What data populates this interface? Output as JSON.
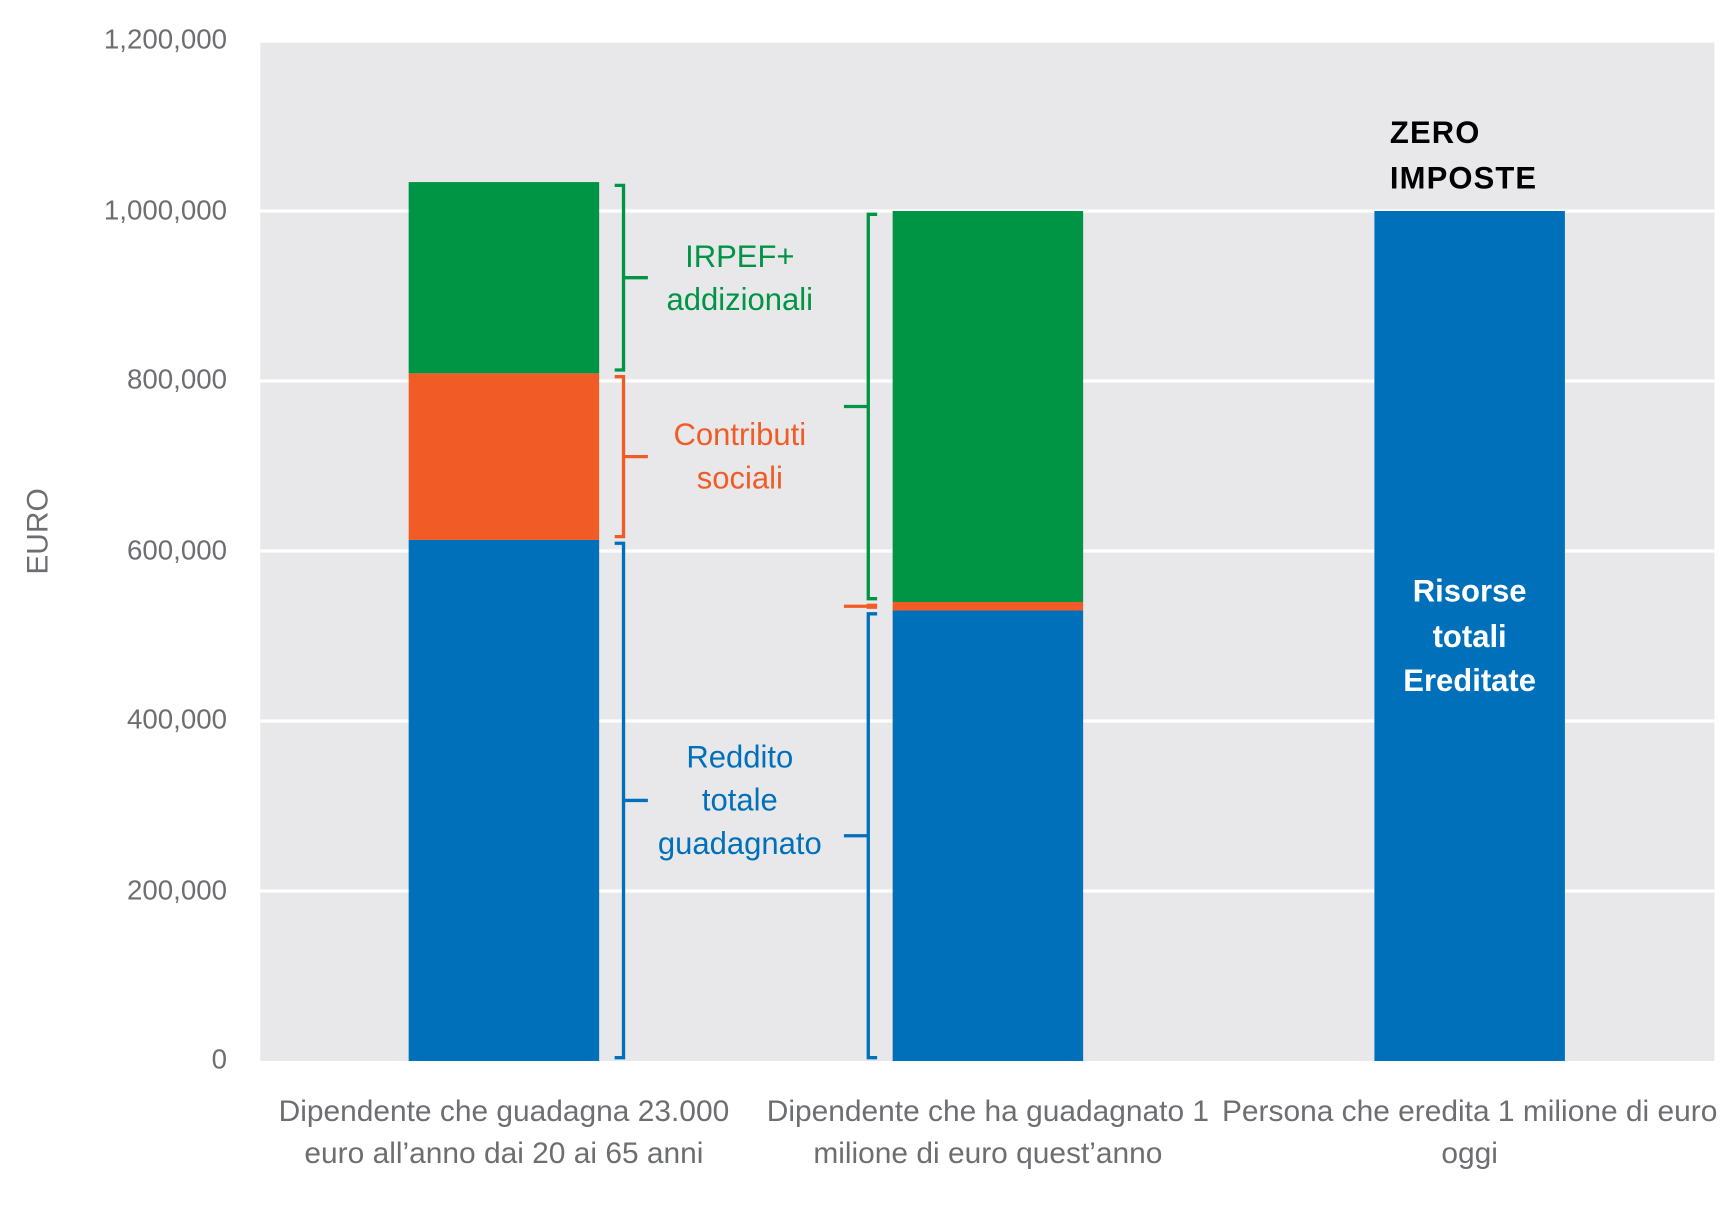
{
  "chart_data": {
    "type": "stacked_bar",
    "y_label": "EURO",
    "categories": [
      "Dipendente che guadagna 23.000 euro all’anno dai 20 ai 65 anni",
      "Dipendente che ha guadagnato 1 milione di euro quest’anno",
      "Persona che eredita 1 milione di euro oggi"
    ],
    "series": [
      {
        "name": "Reddito totale guadagnato",
        "color": "#0070bb",
        "values": [
          613000,
          530000,
          1000000
        ]
      },
      {
        "name": "Contributi sociali",
        "color": "#f15c26",
        "values": [
          196000,
          10000,
          null
        ]
      },
      {
        "name": "IRPEF+ addizionali",
        "color": "#009445",
        "values": [
          225000,
          460000,
          null
        ]
      }
    ],
    "annotations": [
      "ZERO IMPOSTE",
      "Risorse totali Ereditate"
    ],
    "ylim": [
      0,
      1200000
    ],
    "yticks": [
      0,
      {
        "value": 200000,
        "label": "200,000"
      },
      {
        "value": 400000,
        "label": "400,000"
      },
      {
        "value": 600000,
        "label": "600,000"
      },
      {
        "value": 800000,
        "label": "800,000"
      },
      {
        "value": 1000000,
        "label": "1,000,000"
      },
      {
        "value": 1200000,
        "label": "1,200,000"
      }
    ],
    "grid": true
  }
}
